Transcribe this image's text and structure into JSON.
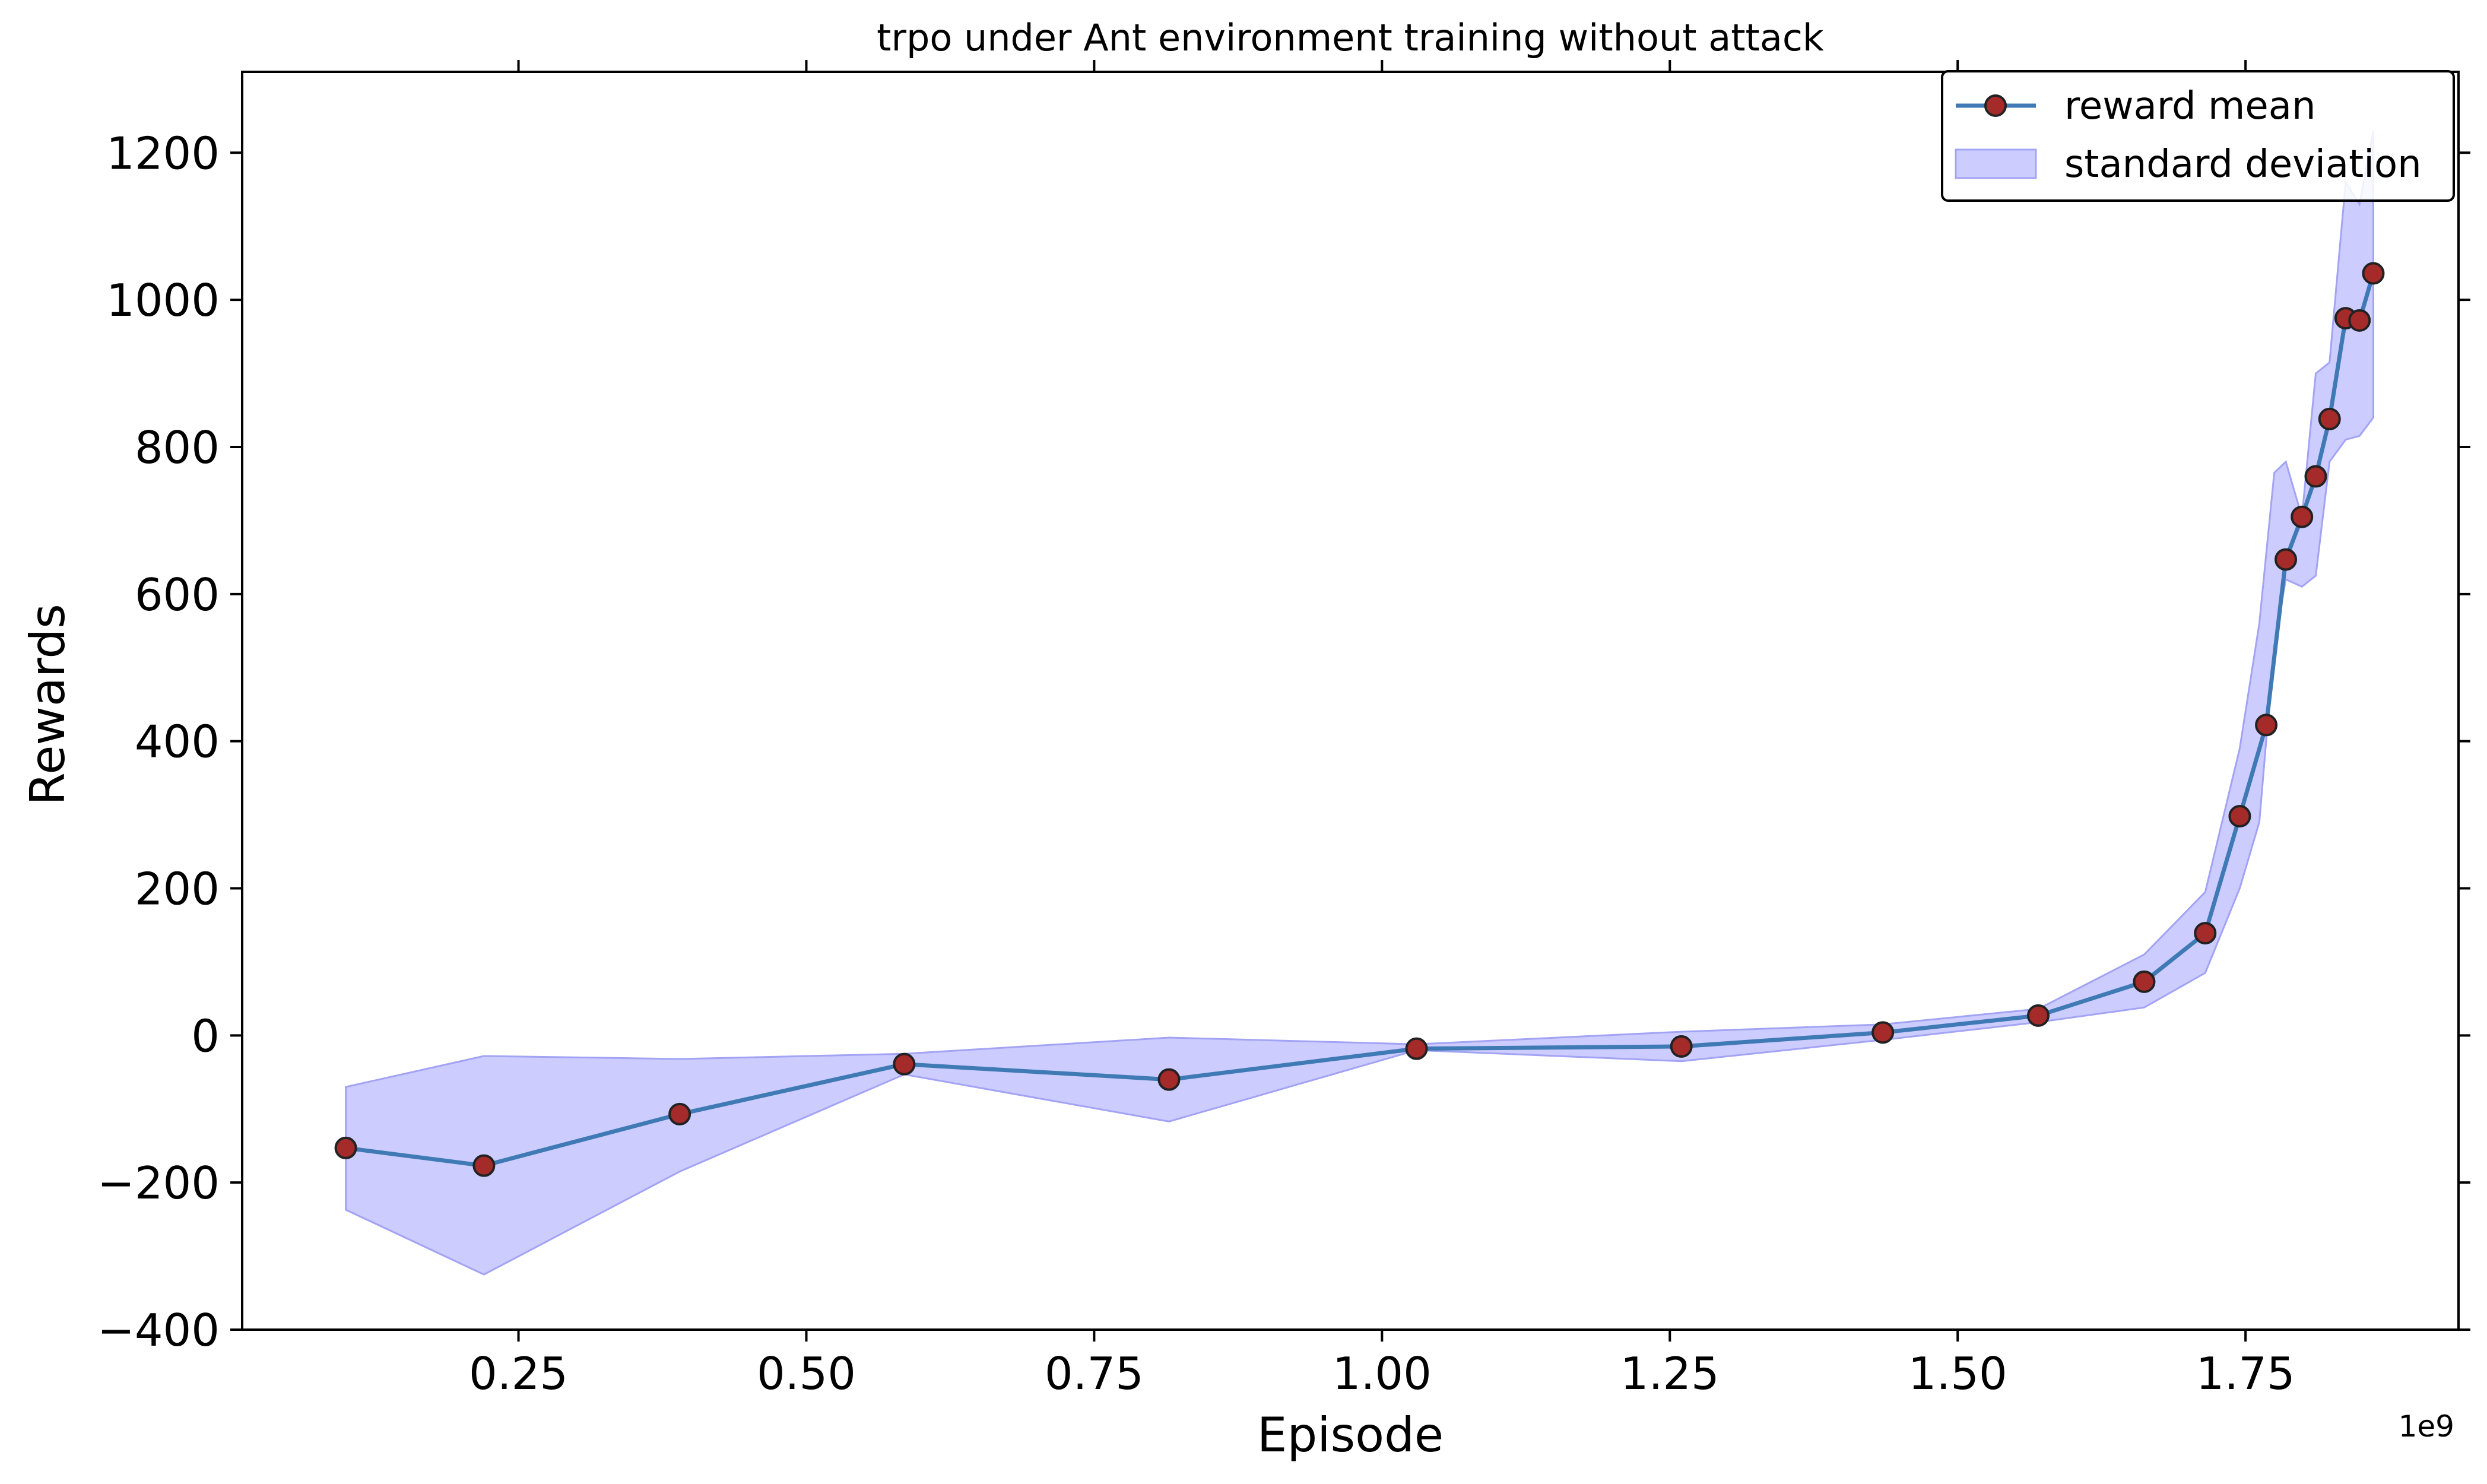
{
  "chart_data": {
    "type": "line",
    "title": "trpo under Ant environment training without attack",
    "xlabel": "Episode",
    "ylabel": "Rewards",
    "x_offset_label": "1e9",
    "xlim": [
      0.01,
      1.935
    ],
    "ylim": [
      -400,
      1310
    ],
    "x_ticks": [
      0.25,
      0.5,
      0.75,
      1.0,
      1.25,
      1.5,
      1.75
    ],
    "x_tick_labels": [
      "0.25",
      "0.50",
      "0.75",
      "1.00",
      "1.25",
      "1.50",
      "1.75"
    ],
    "y_ticks": [
      -400,
      -200,
      0,
      200,
      400,
      600,
      800,
      1000,
      1200
    ],
    "y_tick_labels": [
      "−400",
      "−200",
      "0",
      "200",
      "400",
      "600",
      "800",
      "1000",
      "1200"
    ],
    "grid": false,
    "legend_position": "top-right",
    "colors": {
      "line": "#3f7ab5",
      "marker_face": "#a52a2a",
      "marker_edge": "#222222",
      "band_fill": "#ccccff",
      "band_edge": "#a3a3f5"
    },
    "series": [
      {
        "name": "reward mean",
        "x": [
          0.1,
          0.22,
          0.39,
          0.585,
          0.815,
          1.03,
          1.26,
          1.435,
          1.57,
          1.662,
          1.715,
          1.745,
          1.768,
          1.785,
          1.799,
          1.811,
          1.823,
          1.837,
          1.849,
          1.861
        ],
        "y": [
          -153,
          -177,
          -107,
          -39,
          -60,
          -18,
          -15,
          4,
          27,
          73,
          139,
          298,
          422,
          647,
          705,
          760,
          838,
          975,
          972,
          1036
        ]
      }
    ],
    "band": {
      "name": "standard deviation",
      "x": [
        0.1,
        0.22,
        0.39,
        0.585,
        0.815,
        1.03,
        1.26,
        1.435,
        1.57,
        1.662,
        1.715,
        1.745,
        1.762,
        1.775,
        1.785,
        1.799,
        1.811,
        1.823,
        1.837,
        1.849,
        1.861
      ],
      "lower": [
        -237,
        -325,
        -185,
        -53,
        -117,
        -20,
        -35,
        -6,
        18,
        38,
        85,
        200,
        290,
        530,
        620,
        610,
        625,
        780,
        810,
        815,
        840
      ],
      "upper": [
        -70,
        -28,
        -32,
        -25,
        -3,
        -12,
        5,
        15,
        36,
        110,
        195,
        390,
        560,
        765,
        780,
        705,
        900,
        915,
        1160,
        1130,
        1230
      ]
    }
  }
}
